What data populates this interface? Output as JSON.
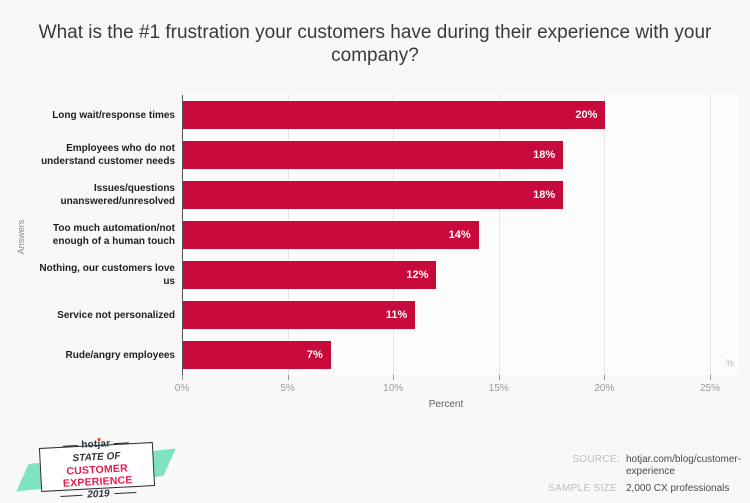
{
  "title": "What is the #1 frustration your customers have during their experience with your company?",
  "chart_data": {
    "type": "bar",
    "orientation": "horizontal",
    "title": "What is the #1 frustration your customers have during their experience with your company?",
    "categories": [
      "Long wait/response times",
      "Employees who do not understand customer needs",
      "Issues/questions unanswered/unresolved",
      "Too much automation/not enough of a human touch",
      "Nothing, our customers love us",
      "Service not personalized",
      "Rude/angry employees"
    ],
    "values": [
      20,
      18,
      18,
      14,
      12,
      11,
      7
    ],
    "value_labels": [
      "20%",
      "18%",
      "18%",
      "14%",
      "12%",
      "11%",
      "7%"
    ],
    "xlabel": "Percent",
    "ylabel": "Answers",
    "xlim": [
      0,
      25
    ],
    "x_ticks": [
      0,
      5,
      10,
      15,
      20,
      25
    ],
    "x_tick_labels": [
      "0%",
      "5%",
      "10%",
      "15%",
      "20%",
      "25%"
    ],
    "axis_unit": "%",
    "bar_color": "#c7093b",
    "grid": true,
    "legend": false
  },
  "footer": {
    "badge": {
      "brand": "hotjar",
      "line1": "STATE OF",
      "line2": "CUSTOMER EXPERIENCE",
      "line3": "2019"
    },
    "source": {
      "label": "SOURCE:",
      "value": "hotjar.com/blog/customer-experience"
    },
    "sample": {
      "label": "SAMPLE SIZE:",
      "value": "2,000 CX professionals"
    }
  },
  "colors": {
    "bar": "#c7093b",
    "badge_mint": "#7ee3c3",
    "badge_red": "#ea1a4e",
    "flame": "#ff3b14"
  }
}
